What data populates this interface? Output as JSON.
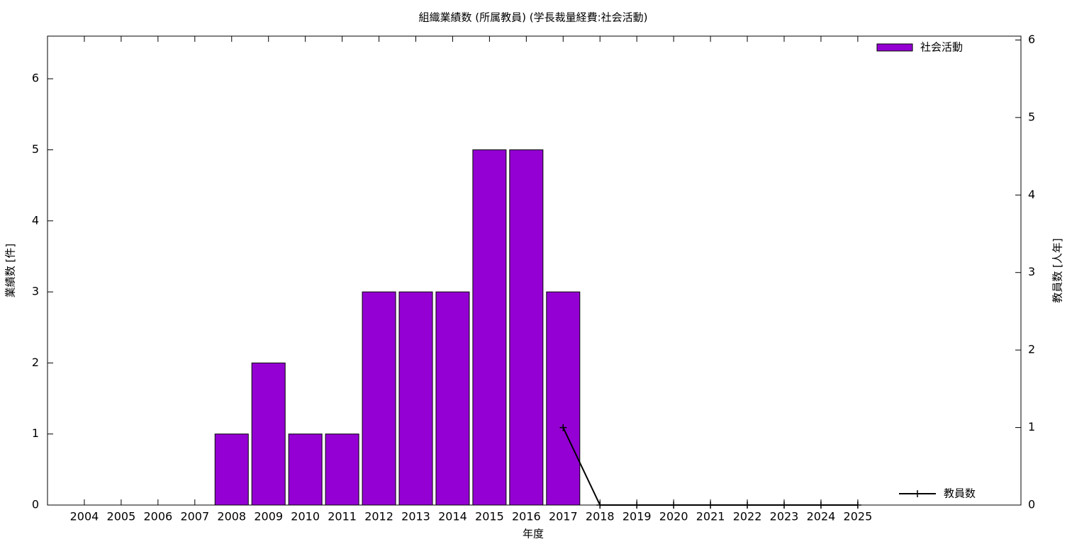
{
  "chart_data": {
    "type": "bar",
    "title": "組織業績数 (所属教員) (学長裁量経費:社会活動)",
    "xlabel": "年度",
    "ylabel": "業績数 [件]",
    "y2label": "教員数 [人年]",
    "categories": [
      "2004",
      "2005",
      "2006",
      "2007",
      "2008",
      "2009",
      "2010",
      "2011",
      "2012",
      "2013",
      "2014",
      "2015",
      "2016",
      "2017",
      "2018",
      "2019",
      "2020",
      "2021",
      "2022",
      "2023",
      "2024",
      "2025"
    ],
    "series": [
      {
        "name": "社会活動",
        "type": "bar",
        "color": "#9400d3",
        "values": [
          0,
          0,
          0,
          0,
          1,
          2,
          1,
          1,
          3,
          3,
          3,
          5,
          5,
          3,
          0,
          0,
          0,
          0,
          0,
          0,
          0,
          0
        ]
      },
      {
        "name": "教員数",
        "type": "line",
        "axis": "y2",
        "color": "#000000",
        "values": [
          null,
          null,
          null,
          null,
          null,
          null,
          null,
          null,
          null,
          null,
          null,
          null,
          null,
          1,
          0,
          0,
          0,
          0,
          0,
          0,
          0,
          0
        ]
      }
    ],
    "ylim": [
      0,
      6.6
    ],
    "yticks": [
      0,
      1,
      2,
      3,
      4,
      5,
      6
    ],
    "y2lim": [
      0,
      6.05
    ],
    "y2ticks": [
      0,
      1,
      2,
      3,
      4,
      5,
      6
    ]
  }
}
